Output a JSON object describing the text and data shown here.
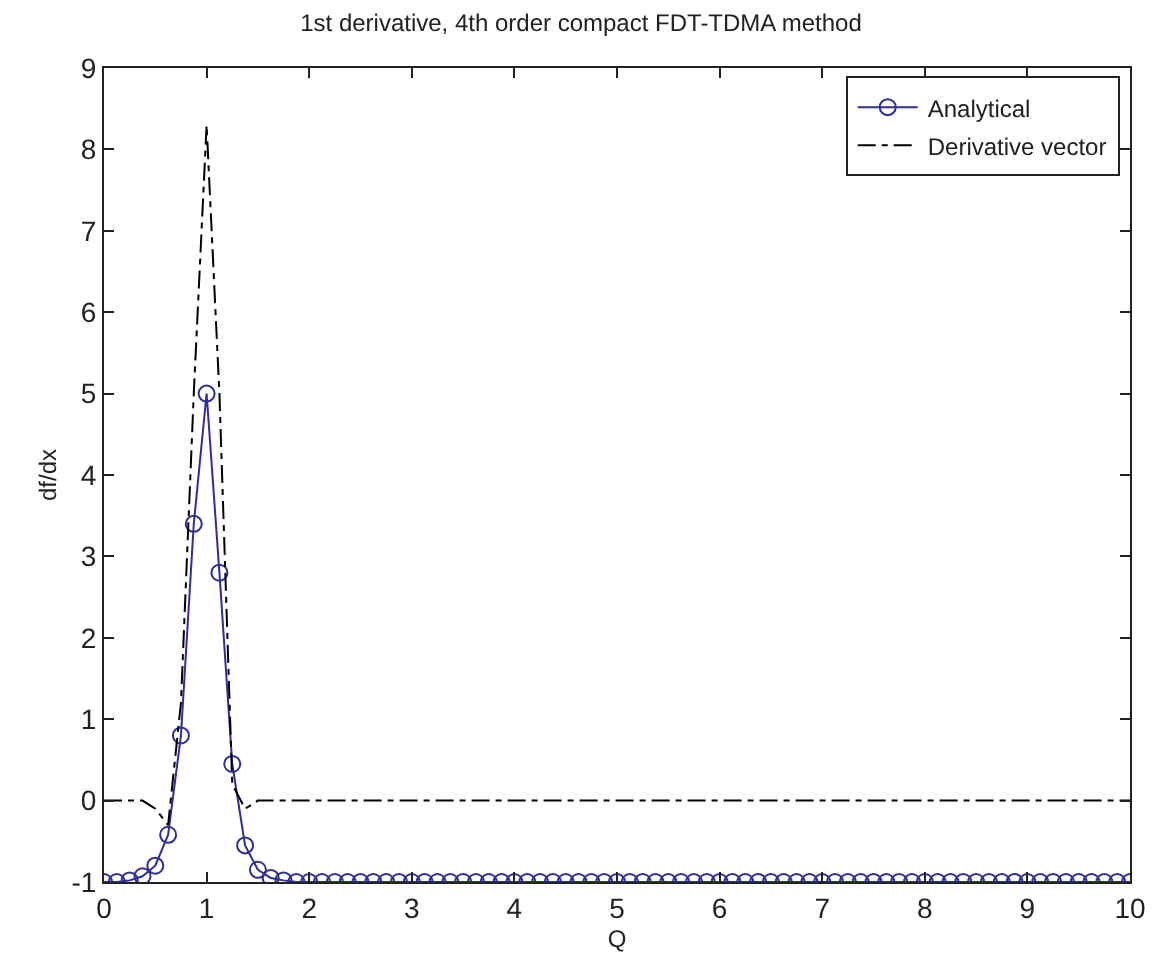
{
  "chart_data": {
    "type": "line",
    "title": "1st derivative, 4th order compact FDT-TDMA method",
    "xlabel": "Q",
    "ylabel": "df/dx",
    "xlim": [
      0,
      10
    ],
    "xticks": [
      0,
      1,
      2,
      3,
      4,
      5,
      6,
      7,
      8,
      9,
      10
    ],
    "ylim": [
      -1,
      9
    ],
    "yticks": [
      -1,
      0,
      1,
      2,
      3,
      4,
      5,
      6,
      7,
      8,
      9
    ],
    "legend": "top right",
    "series": [
      {
        "name": "Analytical",
        "color": "#2e2e9a",
        "marker": "circle",
        "line_style": "solid",
        "x": [
          0,
          0.125,
          0.25,
          0.375,
          0.5,
          0.625,
          0.75,
          0.875,
          1,
          1.125,
          1.25,
          1.375,
          1.5,
          1.625,
          1.75,
          1.875,
          2,
          2.125,
          2.25,
          2.375,
          2.5,
          2.625,
          2.75,
          2.875,
          3,
          3.125,
          3.25,
          3.375,
          3.5,
          3.625,
          3.75,
          3.875,
          4,
          4.125,
          4.25,
          4.375,
          4.5,
          4.625,
          4.75,
          4.875,
          5,
          5.125,
          5.25,
          5.375,
          5.5,
          5.625,
          5.75,
          5.875,
          6,
          6.125,
          6.25,
          6.375,
          6.5,
          6.625,
          6.75,
          6.875,
          7,
          7.125,
          7.25,
          7.375,
          7.5,
          7.625,
          7.75,
          7.875,
          8,
          8.125,
          8.25,
          8.375,
          8.5,
          8.625,
          8.75,
          8.875,
          9,
          9.125,
          9.25,
          9.375,
          9.5,
          9.625,
          9.75,
          9.875,
          10
        ],
        "values": [
          -1,
          -1,
          -0.98,
          -0.93,
          -0.8,
          -0.42,
          0.8,
          3.4,
          5.0,
          2.8,
          0.45,
          -0.55,
          -0.85,
          -0.95,
          -0.98,
          -1,
          -1,
          -1,
          -1,
          -1,
          -1,
          -1,
          -1,
          -1,
          -1,
          -1,
          -1,
          -1,
          -1,
          -1,
          -1,
          -1,
          -1,
          -1,
          -1,
          -1,
          -1,
          -1,
          -1,
          -1,
          -1,
          -1,
          -1,
          -1,
          -1,
          -1,
          -1,
          -1,
          -1,
          -1,
          -1,
          -1,
          -1,
          -1,
          -1,
          -1,
          -1,
          -1,
          -1,
          -1,
          -1,
          -1,
          -1,
          -1,
          -1,
          -1,
          -1,
          -1,
          -1,
          -1,
          -1,
          -1,
          -1,
          -1,
          -1,
          -1,
          -1,
          -1,
          -1,
          -1,
          -1
        ]
      },
      {
        "name": "Derivative vector",
        "color": "#000000",
        "marker": "none",
        "line_style": "dashdot",
        "x": [
          0,
          0.125,
          0.25,
          0.375,
          0.5,
          0.625,
          0.75,
          0.875,
          1,
          1.125,
          1.25,
          1.375,
          1.5,
          1.625,
          1.75,
          1.875,
          2,
          2.125,
          2.25,
          2.375,
          2.5,
          2.625,
          2.75,
          2.875,
          3,
          3.125,
          3.25,
          3.375,
          3.5,
          3.625,
          3.75,
          3.875,
          4,
          4.125,
          4.25,
          4.375,
          4.5,
          4.625,
          4.75,
          4.875,
          5,
          5.125,
          5.25,
          5.375,
          5.5,
          5.625,
          5.75,
          5.875,
          6,
          6.125,
          6.25,
          6.375,
          6.5,
          6.625,
          6.75,
          6.875,
          7,
          7.125,
          7.25,
          7.375,
          7.5,
          7.625,
          7.75,
          7.875,
          8,
          8.125,
          8.25,
          8.375,
          8.5,
          8.625,
          8.75,
          8.875,
          9,
          9.125,
          9.25,
          9.375,
          9.5,
          9.625,
          9.75,
          9.875,
          10
        ],
        "values": [
          0,
          0,
          0,
          0,
          -0.1,
          -0.3,
          1.2,
          5.0,
          8.3,
          5.0,
          0.2,
          -0.1,
          0,
          0,
          0,
          0,
          0,
          0,
          0,
          0,
          0,
          0,
          0,
          0,
          0,
          0,
          0,
          0,
          0,
          0,
          0,
          0,
          0,
          0,
          0,
          0,
          0,
          0,
          0,
          0,
          0,
          0,
          0,
          0,
          0,
          0,
          0,
          0,
          0,
          0,
          0,
          0,
          0,
          0,
          0,
          0,
          0,
          0,
          0,
          0,
          0,
          0,
          0,
          0,
          0,
          0,
          0,
          0,
          0,
          0,
          0,
          0,
          0,
          0,
          0,
          0,
          0,
          0,
          0,
          0,
          0
        ]
      }
    ]
  }
}
